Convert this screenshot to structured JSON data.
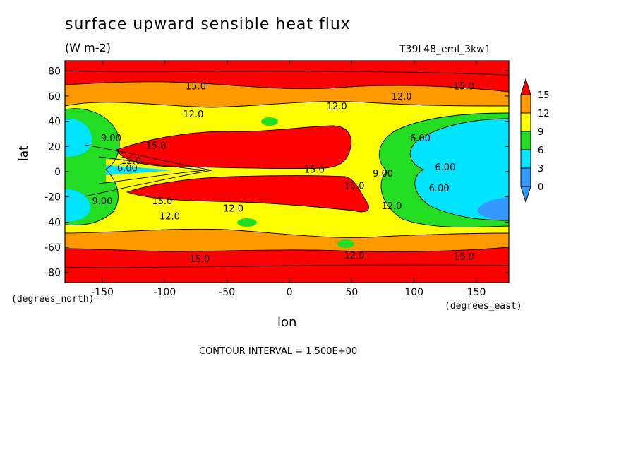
{
  "chart_data": {
    "type": "heatmap",
    "title": "surface upward sensible heat flux",
    "units": "(W m-2)",
    "run_label": "T39L48_eml_3kw1",
    "xlabel": "lon",
    "ylabel": "lat",
    "x_unit_label": "(degrees_east)",
    "y_unit_label": "(degrees_north)",
    "contour_interval_text": "CONTOUR INTERVAL = 1.500E+00",
    "xlim": [
      -180,
      176
    ],
    "ylim": [
      -88,
      88
    ],
    "x_ticks": [
      -150,
      -100,
      -50,
      0,
      50,
      100,
      150
    ],
    "x_tick_labels": [
      "-150",
      "-100",
      "-50",
      "0",
      "50",
      "100",
      "150"
    ],
    "y_ticks": [
      -80,
      -60,
      -40,
      -20,
      0,
      20,
      40,
      60,
      80
    ],
    "y_tick_labels": [
      "-80",
      "-60",
      "-40",
      "-20",
      "0",
      "20",
      "40",
      "60",
      "80"
    ],
    "colorbar": {
      "levels": [
        0,
        3,
        6,
        9,
        12,
        15
      ],
      "labels": [
        "0",
        "3",
        "6",
        "9",
        "12",
        "15"
      ],
      "colors": [
        "#3399ff",
        "#00e5ff",
        "#22dd22",
        "#ffff00",
        "#ff9900",
        "#ff0000"
      ]
    },
    "regions": [
      {
        "level": 15,
        "desc": "northern high-latitude band",
        "lon": [
          -180,
          176
        ],
        "lat": [
          64,
          88
        ]
      },
      {
        "level": 15,
        "desc": "southern high-latitude band",
        "lon": [
          -180,
          176
        ],
        "lat": [
          -88,
          -60
        ]
      },
      {
        "level": 15,
        "desc": "northern subtropical maximum",
        "lon": [
          -135,
          50
        ],
        "lat": [
          3,
          33
        ]
      },
      {
        "level": 15,
        "desc": "southern subtropical maximum",
        "lon": [
          -130,
          65
        ],
        "lat": [
          -32,
          -3
        ]
      },
      {
        "level": 3,
        "desc": "eastern Pacific-side minimum north",
        "lon": [
          90,
          176
        ],
        "lat": [
          5,
          45
        ]
      },
      {
        "level": 3,
        "desc": "eastern Pacific-side minimum south",
        "lon": [
          90,
          176
        ],
        "lat": [
          -50,
          -10
        ]
      },
      {
        "level": 3,
        "desc": "western minimum north",
        "lon": [
          -180,
          -160
        ],
        "lat": [
          15,
          45
        ]
      },
      {
        "level": 3,
        "desc": "western minimum south",
        "lon": [
          -180,
          -165
        ],
        "lat": [
          -45,
          -15
        ]
      }
    ],
    "contour_labels": [
      {
        "text": "15.0",
        "lon": -75,
        "lat": 68
      },
      {
        "text": "15.0",
        "lon": 140,
        "lat": 68
      },
      {
        "text": "12.0",
        "lon": 90,
        "lat": 60
      },
      {
        "text": "12.0",
        "lon": 38,
        "lat": 52
      },
      {
        "text": "12.0",
        "lon": -77,
        "lat": 46
      },
      {
        "text": "9.00",
        "lon": -143,
        "lat": 27
      },
      {
        "text": "15.0",
        "lon": -107,
        "lat": 21
      },
      {
        "text": "12.0",
        "lon": -127,
        "lat": 9
      },
      {
        "text": "6.00",
        "lon": -130,
        "lat": 3
      },
      {
        "text": "6.00",
        "lon": 105,
        "lat": 27
      },
      {
        "text": "6.00",
        "lon": 125,
        "lat": 4
      },
      {
        "text": "6.00",
        "lon": 120,
        "lat": -13
      },
      {
        "text": "15.0",
        "lon": 20,
        "lat": 2
      },
      {
        "text": "9.00",
        "lon": 75,
        "lat": -1
      },
      {
        "text": "15.0",
        "lon": 52,
        "lat": -11
      },
      {
        "text": "12.0",
        "lon": 82,
        "lat": -27
      },
      {
        "text": "9.00",
        "lon": -150,
        "lat": -23
      },
      {
        "text": "15.0",
        "lon": -102,
        "lat": -23
      },
      {
        "text": "12.0",
        "lon": -96,
        "lat": -35
      },
      {
        "text": "12.0",
        "lon": -45,
        "lat": -29
      },
      {
        "text": "12.0",
        "lon": 52,
        "lat": -66
      },
      {
        "text": "15.0",
        "lon": -72,
        "lat": -69
      },
      {
        "text": "15.0",
        "lon": 140,
        "lat": -67
      }
    ]
  }
}
